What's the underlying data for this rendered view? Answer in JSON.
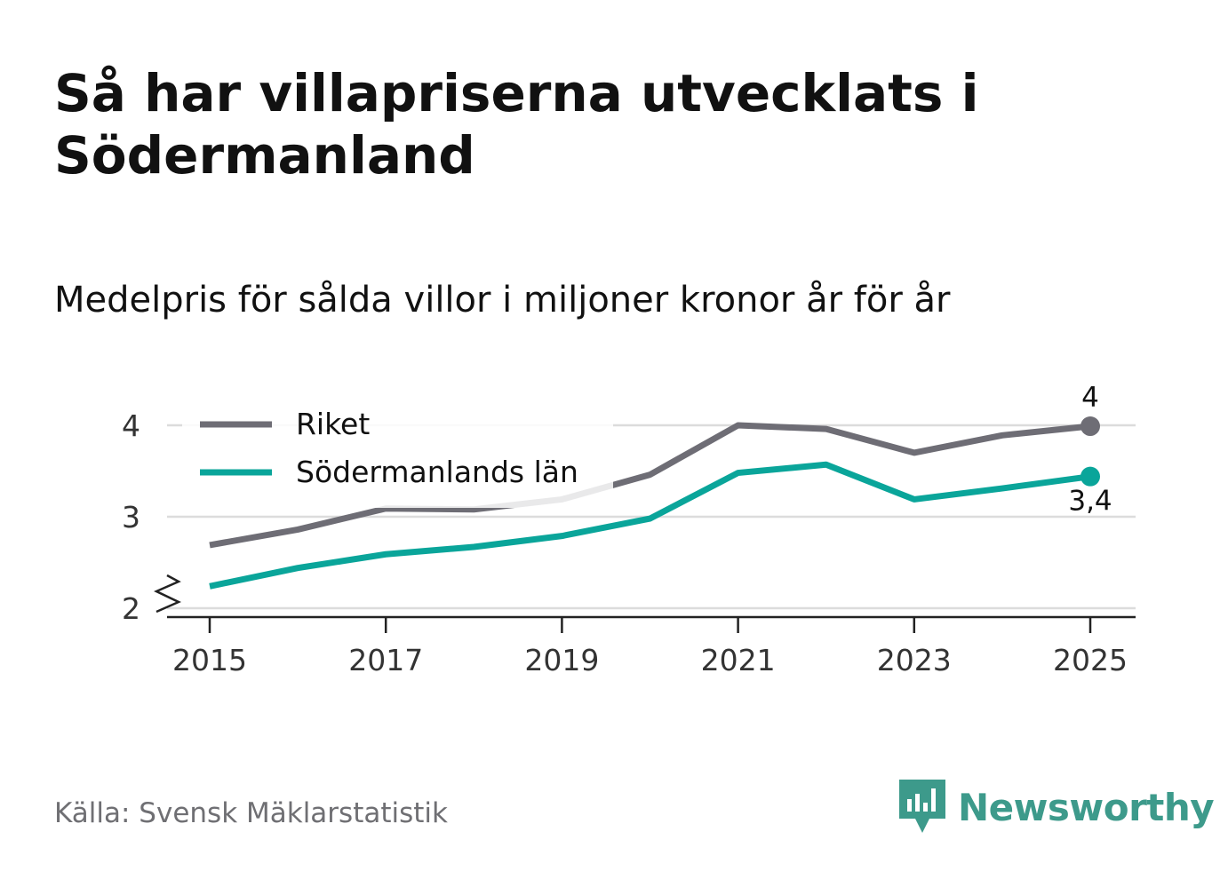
{
  "title": "Så har villapriserna utvecklats i Södermanland",
  "subtitle": "Medelpris för sålda villor i miljoner kronor år för år",
  "source": "Källa: Svensk Mäklarstatistik",
  "brand": {
    "name": "Newsworthy",
    "icon": "newsworthy-logo-icon",
    "color": "#3d9a8b"
  },
  "chart_data": {
    "type": "line",
    "x": [
      2015,
      2016,
      2017,
      2018,
      2019,
      2020,
      2021,
      2022,
      2023,
      2024,
      2025
    ],
    "x_ticks": [
      "2015",
      "2017",
      "2019",
      "2021",
      "2023",
      "2025"
    ],
    "y_ticks": [
      "2",
      "3",
      "4"
    ],
    "ylim": [
      1.9,
      4.3
    ],
    "axis_break": true,
    "grid": true,
    "legend_position": "top-left",
    "series": [
      {
        "name": "Riket",
        "color": "#6e6d75",
        "values": [
          2.69,
          2.86,
          3.09,
          3.08,
          3.19,
          3.46,
          4.0,
          3.96,
          3.7,
          3.89,
          3.99
        ],
        "end_label": "4"
      },
      {
        "name": "Södermanlands län",
        "color": "#0aa59a",
        "values": [
          2.24,
          2.44,
          2.59,
          2.67,
          2.79,
          2.98,
          3.48,
          3.57,
          3.19,
          3.31,
          3.44
        ],
        "end_label": "3,4"
      }
    ]
  }
}
